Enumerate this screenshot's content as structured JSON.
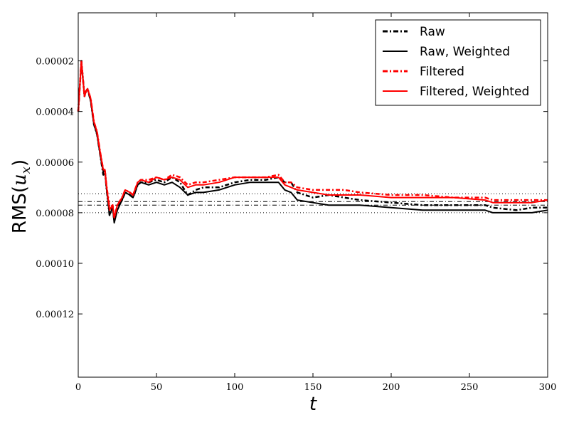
{
  "chart_data": {
    "type": "line",
    "xlabel": "t",
    "ylabel_prefix": "RMS(",
    "ylabel_var": "u",
    "ylabel_sub": "x",
    "ylabel_suffix": ")",
    "xlim": [
      0,
      300
    ],
    "ylim": [
      0.000145,
      1e-06
    ],
    "y_inverted": true,
    "x_ticks": [
      0,
      50,
      100,
      150,
      200,
      250,
      300
    ],
    "x_tick_labels": [
      "0",
      "50",
      "100",
      "150",
      "200",
      "250",
      "300"
    ],
    "y_ticks": [
      2e-05,
      4e-05,
      6e-05,
      8e-05,
      0.0001,
      0.00012
    ],
    "y_tick_labels": [
      "0.00002",
      "0.00004",
      "0.00006",
      "0.00008",
      "0.00010",
      "0.00012"
    ],
    "grid": false,
    "legend_position": "top-right",
    "hlines": [
      {
        "y": 7.25e-05,
        "style": "dotted",
        "color": "#000000"
      },
      {
        "y": 7.56e-05,
        "style": "dashdot",
        "color": "#000000"
      },
      {
        "y": 7.7e-05,
        "style": "dashdot",
        "color": "#000000"
      },
      {
        "y": 8e-05,
        "style": "dotted",
        "color": "#000000"
      }
    ],
    "series": [
      {
        "name": "Raw",
        "color": "#000000",
        "style": "dashdot",
        "points": [
          [
            0,
            4e-05
          ],
          [
            2,
            2e-05
          ],
          [
            4,
            3.4e-05
          ],
          [
            5,
            3.2e-05
          ],
          [
            6,
            3.1e-05
          ],
          [
            8,
            3.6e-05
          ],
          [
            10,
            4.5e-05
          ],
          [
            12,
            4.9e-05
          ],
          [
            14,
            5.7e-05
          ],
          [
            16,
            6.5e-05
          ],
          [
            17,
            6.3e-05
          ],
          [
            18,
            7e-05
          ],
          [
            20,
            8.1e-05
          ],
          [
            22,
            7.8e-05
          ],
          [
            23,
            8.3e-05
          ],
          [
            25,
            7.8e-05
          ],
          [
            28,
            7.5e-05
          ],
          [
            30,
            7.2e-05
          ],
          [
            33,
            7.3e-05
          ],
          [
            35,
            7.4e-05
          ],
          [
            38,
            6.9e-05
          ],
          [
            40,
            6.8e-05
          ],
          [
            45,
            6.8e-05
          ],
          [
            50,
            6.7e-05
          ],
          [
            55,
            6.8e-05
          ],
          [
            60,
            6.6e-05
          ],
          [
            65,
            6.8e-05
          ],
          [
            70,
            7.3e-05
          ],
          [
            75,
            7.1e-05
          ],
          [
            80,
            7e-05
          ],
          [
            90,
            7e-05
          ],
          [
            100,
            6.8e-05
          ],
          [
            110,
            6.7e-05
          ],
          [
            120,
            6.7e-05
          ],
          [
            128,
            6.6e-05
          ],
          [
            132,
            6.8e-05
          ],
          [
            136,
            6.8e-05
          ],
          [
            140,
            7.2e-05
          ],
          [
            150,
            7.4e-05
          ],
          [
            160,
            7.3e-05
          ],
          [
            170,
            7.4e-05
          ],
          [
            180,
            7.5e-05
          ],
          [
            200,
            7.6e-05
          ],
          [
            220,
            7.7e-05
          ],
          [
            240,
            7.7e-05
          ],
          [
            260,
            7.7e-05
          ],
          [
            265,
            7.8e-05
          ],
          [
            280,
            7.9e-05
          ],
          [
            290,
            7.8e-05
          ],
          [
            300,
            7.8e-05
          ]
        ]
      },
      {
        "name": "Raw, Weighted",
        "color": "#000000",
        "style": "solid",
        "points": [
          [
            0,
            4e-05
          ],
          [
            2,
            2e-05
          ],
          [
            4,
            3.4e-05
          ],
          [
            5,
            3.2e-05
          ],
          [
            6,
            3.1e-05
          ],
          [
            8,
            3.6e-05
          ],
          [
            10,
            4.5e-05
          ],
          [
            12,
            4.9e-05
          ],
          [
            14,
            5.7e-05
          ],
          [
            16,
            6.4e-05
          ],
          [
            17,
            6.3e-05
          ],
          [
            18,
            7e-05
          ],
          [
            20,
            8.1e-05
          ],
          [
            22,
            7.8e-05
          ],
          [
            23,
            8.4e-05
          ],
          [
            25,
            7.9e-05
          ],
          [
            28,
            7.5e-05
          ],
          [
            30,
            7.2e-05
          ],
          [
            33,
            7.3e-05
          ],
          [
            35,
            7.4e-05
          ],
          [
            38,
            6.9e-05
          ],
          [
            40,
            6.8e-05
          ],
          [
            45,
            6.9e-05
          ],
          [
            50,
            6.8e-05
          ],
          [
            55,
            6.9e-05
          ],
          [
            60,
            6.8e-05
          ],
          [
            65,
            7e-05
          ],
          [
            70,
            7.3e-05
          ],
          [
            75,
            7.2e-05
          ],
          [
            80,
            7.2e-05
          ],
          [
            90,
            7.1e-05
          ],
          [
            100,
            6.9e-05
          ],
          [
            110,
            6.8e-05
          ],
          [
            120,
            6.8e-05
          ],
          [
            128,
            6.8e-05
          ],
          [
            132,
            7.1e-05
          ],
          [
            136,
            7.2e-05
          ],
          [
            140,
            7.5e-05
          ],
          [
            150,
            7.6e-05
          ],
          [
            160,
            7.7e-05
          ],
          [
            170,
            7.7e-05
          ],
          [
            180,
            7.7e-05
          ],
          [
            200,
            7.8e-05
          ],
          [
            220,
            7.9e-05
          ],
          [
            240,
            7.9e-05
          ],
          [
            260,
            7.9e-05
          ],
          [
            265,
            8e-05
          ],
          [
            280,
            8e-05
          ],
          [
            290,
            8e-05
          ],
          [
            300,
            7.9e-05
          ]
        ]
      },
      {
        "name": "Filtered",
        "color": "#ff0000",
        "style": "dashdot",
        "points": [
          [
            0,
            4e-05
          ],
          [
            2,
            2e-05
          ],
          [
            4,
            3.4e-05
          ],
          [
            5,
            3.2e-05
          ],
          [
            6,
            3.1e-05
          ],
          [
            8,
            3.5e-05
          ],
          [
            10,
            4.4e-05
          ],
          [
            12,
            4.8e-05
          ],
          [
            14,
            5.6e-05
          ],
          [
            16,
            6.3e-05
          ],
          [
            17,
            6.3e-05
          ],
          [
            18,
            6.9e-05
          ],
          [
            20,
            7.8e-05
          ],
          [
            22,
            7.7e-05
          ],
          [
            23,
            8.2e-05
          ],
          [
            25,
            7.7e-05
          ],
          [
            28,
            7.4e-05
          ],
          [
            30,
            7.1e-05
          ],
          [
            33,
            7.2e-05
          ],
          [
            35,
            7.3e-05
          ],
          [
            38,
            6.8e-05
          ],
          [
            40,
            6.7e-05
          ],
          [
            45,
            6.7e-05
          ],
          [
            50,
            6.6e-05
          ],
          [
            55,
            6.7e-05
          ],
          [
            60,
            6.5e-05
          ],
          [
            65,
            6.6e-05
          ],
          [
            70,
            6.9e-05
          ],
          [
            75,
            6.8e-05
          ],
          [
            80,
            6.8e-05
          ],
          [
            90,
            6.7e-05
          ],
          [
            100,
            6.6e-05
          ],
          [
            110,
            6.6e-05
          ],
          [
            120,
            6.6e-05
          ],
          [
            128,
            6.5e-05
          ],
          [
            132,
            6.8e-05
          ],
          [
            136,
            6.8e-05
          ],
          [
            140,
            7e-05
          ],
          [
            150,
            7.1e-05
          ],
          [
            160,
            7.1e-05
          ],
          [
            170,
            7.1e-05
          ],
          [
            180,
            7.2e-05
          ],
          [
            200,
            7.3e-05
          ],
          [
            220,
            7.3e-05
          ],
          [
            240,
            7.4e-05
          ],
          [
            260,
            7.4e-05
          ],
          [
            265,
            7.5e-05
          ],
          [
            280,
            7.5e-05
          ],
          [
            290,
            7.5e-05
          ],
          [
            300,
            7.5e-05
          ]
        ]
      },
      {
        "name": "Filtered, Weighted",
        "color": "#ff0000",
        "style": "solid",
        "points": [
          [
            0,
            4e-05
          ],
          [
            2,
            2e-05
          ],
          [
            4,
            3.4e-05
          ],
          [
            5,
            3.2e-05
          ],
          [
            6,
            3.1e-05
          ],
          [
            8,
            3.5e-05
          ],
          [
            10,
            4.4e-05
          ],
          [
            12,
            4.8e-05
          ],
          [
            14,
            5.6e-05
          ],
          [
            16,
            6.3e-05
          ],
          [
            17,
            6.3e-05
          ],
          [
            18,
            6.9e-05
          ],
          [
            20,
            7.9e-05
          ],
          [
            22,
            7.7e-05
          ],
          [
            23,
            8.2e-05
          ],
          [
            25,
            7.7e-05
          ],
          [
            28,
            7.4e-05
          ],
          [
            30,
            7.1e-05
          ],
          [
            33,
            7.2e-05
          ],
          [
            35,
            7.3e-05
          ],
          [
            38,
            6.8e-05
          ],
          [
            40,
            6.7e-05
          ],
          [
            45,
            6.8e-05
          ],
          [
            50,
            6.6e-05
          ],
          [
            55,
            6.7e-05
          ],
          [
            60,
            6.6e-05
          ],
          [
            65,
            6.7e-05
          ],
          [
            70,
            7e-05
          ],
          [
            75,
            6.9e-05
          ],
          [
            80,
            6.9e-05
          ],
          [
            90,
            6.8e-05
          ],
          [
            100,
            6.6e-05
          ],
          [
            110,
            6.6e-05
          ],
          [
            120,
            6.6e-05
          ],
          [
            128,
            6.6e-05
          ],
          [
            132,
            6.9e-05
          ],
          [
            136,
            7e-05
          ],
          [
            140,
            7.1e-05
          ],
          [
            150,
            7.2e-05
          ],
          [
            160,
            7.3e-05
          ],
          [
            170,
            7.3e-05
          ],
          [
            180,
            7.3e-05
          ],
          [
            200,
            7.4e-05
          ],
          [
            220,
            7.4e-05
          ],
          [
            240,
            7.4e-05
          ],
          [
            260,
            7.5e-05
          ],
          [
            265,
            7.6e-05
          ],
          [
            280,
            7.6e-05
          ],
          [
            290,
            7.6e-05
          ],
          [
            300,
            7.5e-05
          ]
        ]
      }
    ]
  }
}
